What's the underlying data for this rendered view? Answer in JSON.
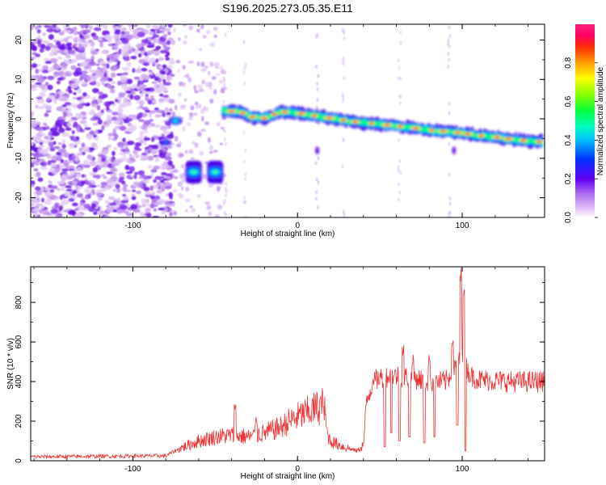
{
  "title": "S196.2025.273.05.35.E11",
  "chart_data": [
    {
      "type": "heatmap",
      "xlabel": "Height of straight line (km)",
      "ylabel": "Frequency (Hz)",
      "xlim": [
        -162,
        150
      ],
      "ylim": [
        -25,
        24
      ],
      "xticks": [
        -100,
        0,
        100
      ],
      "yticks": [
        -20,
        -10,
        0,
        10,
        20
      ],
      "colorbar": {
        "label": "Normalized spectral amplitude",
        "range": [
          0,
          1
        ],
        "ticks": [
          0.0,
          0.2,
          0.4,
          0.6,
          0.8
        ],
        "tick_labels": [
          "0.0",
          "0.2",
          "0.4",
          "0.6",
          "0.8"
        ]
      },
      "ridge": [
        {
          "x": -45,
          "f": 2.0
        },
        {
          "x": -35,
          "f": 1.8
        },
        {
          "x": -28,
          "f": 0.5
        },
        {
          "x": -20,
          "f": 0.2
        },
        {
          "x": -10,
          "f": 1.8
        },
        {
          "x": 0,
          "f": 1.5
        },
        {
          "x": 10,
          "f": 0.8
        },
        {
          "x": 20,
          "f": 0.2
        },
        {
          "x": 30,
          "f": -0.5
        },
        {
          "x": 40,
          "f": -1.0
        },
        {
          "x": 50,
          "f": -1.4
        },
        {
          "x": 60,
          "f": -1.8
        },
        {
          "x": 70,
          "f": -2.3
        },
        {
          "x": 80,
          "f": -2.8
        },
        {
          "x": 90,
          "f": -3.2
        },
        {
          "x": 100,
          "f": -3.6
        },
        {
          "x": 110,
          "f": -4.2
        },
        {
          "x": 120,
          "f": -4.6
        },
        {
          "x": 130,
          "f": -5.2
        },
        {
          "x": 140,
          "f": -5.6
        },
        {
          "x": 148,
          "f": -5.8
        }
      ],
      "features": [
        {
          "x": -80,
          "f": -6.0
        },
        {
          "x": -74,
          "f": -0.5
        },
        {
          "x": -63,
          "f": -13.5
        },
        {
          "x": -50,
          "f": -13.5
        }
      ]
    },
    {
      "type": "line",
      "xlabel": "Height of straight line (km)",
      "ylabel": "SNR (10 * v/v)",
      "xlim": [
        -162,
        150
      ],
      "ylim": [
        0,
        980
      ],
      "xticks": [
        -100,
        0,
        100
      ],
      "yticks": [
        0,
        200,
        400,
        600,
        800
      ],
      "color": "#ee3333",
      "profile": [
        [
          -162,
          20
        ],
        [
          -80,
          25
        ],
        [
          -72,
          60
        ],
        [
          -60,
          100
        ],
        [
          -50,
          120
        ],
        [
          -40,
          130
        ],
        [
          -30,
          120
        ],
        [
          -20,
          140
        ],
        [
          -10,
          170
        ],
        [
          -5,
          200
        ],
        [
          5,
          240
        ],
        [
          10,
          260
        ],
        [
          16,
          280
        ],
        [
          18,
          140
        ],
        [
          20,
          100
        ],
        [
          28,
          70
        ],
        [
          36,
          50
        ],
        [
          40,
          80
        ],
        [
          42,
          300
        ],
        [
          46,
          400
        ],
        [
          50,
          420
        ],
        [
          60,
          430
        ],
        [
          70,
          420
        ],
        [
          80,
          400
        ],
        [
          90,
          400
        ],
        [
          95,
          460
        ],
        [
          100,
          520
        ],
        [
          105,
          430
        ],
        [
          110,
          410
        ],
        [
          130,
          400
        ],
        [
          150,
          400
        ]
      ],
      "spikes": [
        {
          "x": -38,
          "y": 290
        },
        {
          "x": -25,
          "y": 220
        },
        {
          "x": 14,
          "y": 330
        },
        {
          "x": 46,
          "y": 440
        },
        {
          "x": 64,
          "y": 600
        },
        {
          "x": 70,
          "y": 570
        },
        {
          "x": 80,
          "y": 560
        },
        {
          "x": 94,
          "y": 660
        },
        {
          "x": 99,
          "y": 980
        },
        {
          "x": 101,
          "y": 950
        }
      ],
      "dips": [
        {
          "x": 53,
          "y": 70
        },
        {
          "x": 57,
          "y": 140
        },
        {
          "x": 62,
          "y": 100
        },
        {
          "x": 68,
          "y": 120
        },
        {
          "x": 77,
          "y": 90
        },
        {
          "x": 83,
          "y": 120
        },
        {
          "x": 97,
          "y": 180
        },
        {
          "x": 102,
          "y": 50
        }
      ]
    }
  ]
}
